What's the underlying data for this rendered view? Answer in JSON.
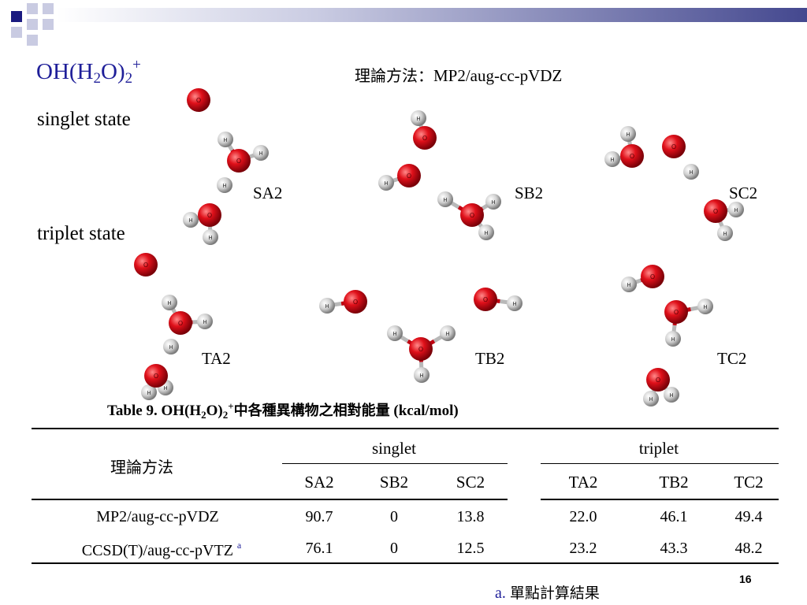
{
  "slide": {
    "title_main": "OH(H",
    "title_sub": "2",
    "title_mid": "O)",
    "title_sub2": "2",
    "title_sup": "+",
    "method_cjk": "理論方法：",
    "method_text": "MP2/aug-cc-pVDZ",
    "singlet_label": "singlet state",
    "triplet_label": "triplet state",
    "isomers": {
      "sa2": "SA2",
      "sb2": "SB2",
      "sc2": "SC2",
      "ta2": "TA2",
      "tb2": "TB2",
      "tc2": "TC2"
    },
    "atom_o": "O",
    "atom_h": "H",
    "colors": {
      "title": "#1f1f99",
      "oxygen": "#e0101a",
      "hydrogen": "#d8d8d8"
    }
  },
  "table": {
    "caption_a": "Table 9. OH(H",
    "caption_sub": "2",
    "caption_b": "O)",
    "caption_sub2": "2",
    "caption_sup": "+",
    "caption_cjk": "中各種異構物之相對能量",
    "caption_units": "(kcal/mol)",
    "method_header": "理論方法",
    "singlet_header": "singlet",
    "triplet_header": "triplet",
    "columns": [
      "SA2",
      "SB2",
      "SC2",
      "TA2",
      "TB2",
      "TC2"
    ],
    "rows": [
      {
        "method": "MP2/aug-cc-pVDZ",
        "mark": "",
        "values": [
          "90.7",
          "0",
          "13.8",
          "22.0",
          "46.1",
          "49.4"
        ]
      },
      {
        "method": "CCSD(T)/aug-cc-pVTZ",
        "mark": "a",
        "values": [
          "76.1",
          "0",
          "12.5",
          "23.2",
          "43.3",
          "48.2"
        ]
      }
    ]
  },
  "footer": {
    "page_number": "16",
    "footnote_mark": "a.",
    "footnote_cjk": "單點計算結果"
  }
}
